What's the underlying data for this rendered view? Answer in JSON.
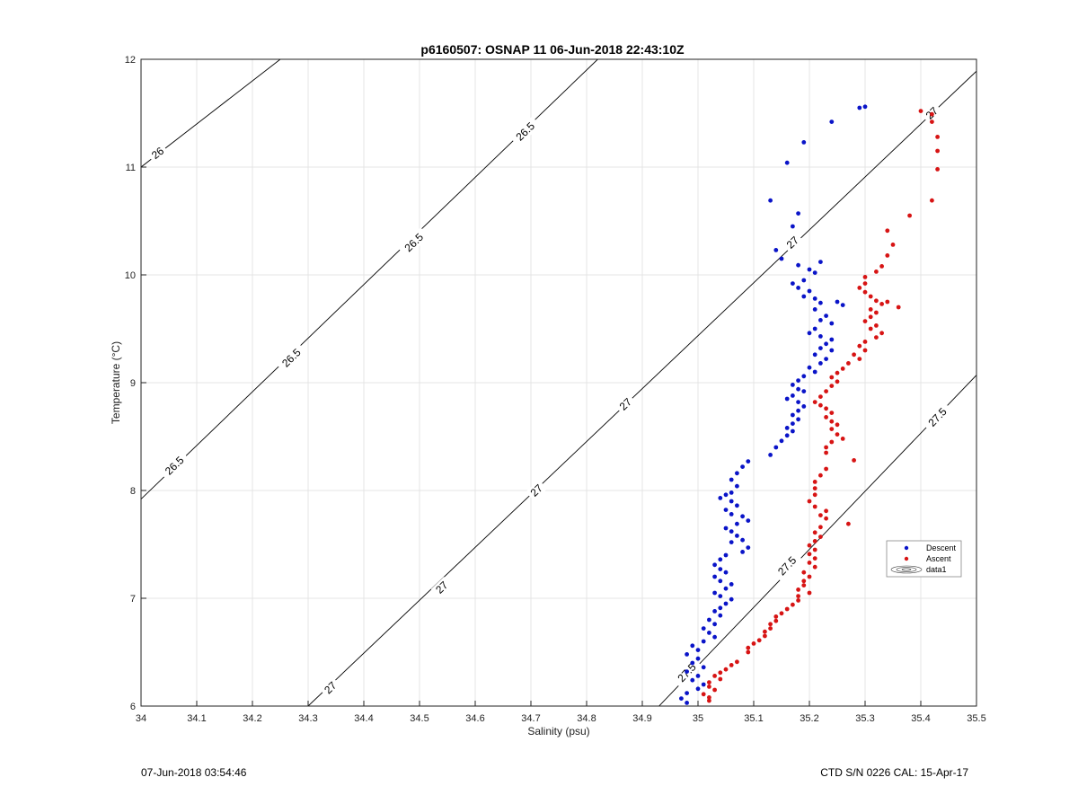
{
  "chart_data": {
    "type": "scatter",
    "title": "p6160507: OSNAP 11 06-Jun-2018 22:43:10Z",
    "xlabel": "Salinity (psu)",
    "ylabel": "Temperature (°C)",
    "xlim": [
      34,
      35.5
    ],
    "ylim": [
      6,
      12
    ],
    "xticks": [
      34,
      34.1,
      34.2,
      34.3,
      34.4,
      34.5,
      34.6,
      34.7,
      34.8,
      34.9,
      35,
      35.1,
      35.2,
      35.3,
      35.4,
      35.5
    ],
    "yticks": [
      6,
      7,
      8,
      9,
      10,
      11,
      12
    ],
    "xtick_labels": [
      "34",
      "34.1",
      "34.2",
      "34.3",
      "34.4",
      "34.5",
      "34.6",
      "34.7",
      "34.8",
      "34.9",
      "35",
      "35.1",
      "35.2",
      "35.3",
      "35.4",
      "35.5"
    ],
    "ytick_labels": [
      "6",
      "7",
      "8",
      "9",
      "10",
      "11",
      "12"
    ],
    "grid": true,
    "legend_position": "lower-right",
    "legend": [
      "Descent",
      "Ascent",
      "data1"
    ],
    "series": [
      {
        "name": "Descent",
        "color": "#0a14c8",
        "points": [
          [
            35.3,
            11.56
          ],
          [
            35.29,
            11.55
          ],
          [
            35.24,
            11.42
          ],
          [
            35.19,
            11.23
          ],
          [
            35.16,
            11.04
          ],
          [
            35.13,
            10.69
          ],
          [
            35.18,
            10.57
          ],
          [
            35.17,
            10.45
          ],
          [
            35.14,
            10.23
          ],
          [
            35.15,
            10.15
          ],
          [
            35.18,
            10.09
          ],
          [
            35.2,
            10.05
          ],
          [
            35.22,
            10.12
          ],
          [
            35.21,
            10.02
          ],
          [
            35.19,
            9.95
          ],
          [
            35.17,
            9.92
          ],
          [
            35.18,
            9.88
          ],
          [
            35.2,
            9.85
          ],
          [
            35.19,
            9.8
          ],
          [
            35.21,
            9.78
          ],
          [
            35.22,
            9.74
          ],
          [
            35.25,
            9.75
          ],
          [
            35.26,
            9.72
          ],
          [
            35.21,
            9.68
          ],
          [
            35.23,
            9.62
          ],
          [
            35.22,
            9.58
          ],
          [
            35.24,
            9.55
          ],
          [
            35.21,
            9.5
          ],
          [
            35.2,
            9.46
          ],
          [
            35.22,
            9.43
          ],
          [
            35.24,
            9.4
          ],
          [
            35.23,
            9.36
          ],
          [
            35.22,
            9.32
          ],
          [
            35.24,
            9.3
          ],
          [
            35.21,
            9.26
          ],
          [
            35.23,
            9.22
          ],
          [
            35.22,
            9.18
          ],
          [
            35.2,
            9.14
          ],
          [
            35.21,
            9.1
          ],
          [
            35.19,
            9.06
          ],
          [
            35.18,
            9.02
          ],
          [
            35.17,
            8.98
          ],
          [
            35.18,
            8.94
          ],
          [
            35.19,
            8.92
          ],
          [
            35.17,
            8.88
          ],
          [
            35.16,
            8.85
          ],
          [
            35.18,
            8.82
          ],
          [
            35.19,
            8.78
          ],
          [
            35.18,
            8.74
          ],
          [
            35.17,
            8.7
          ],
          [
            35.18,
            8.66
          ],
          [
            35.17,
            8.62
          ],
          [
            35.16,
            8.58
          ],
          [
            35.17,
            8.55
          ],
          [
            35.16,
            8.51
          ],
          [
            35.15,
            8.46
          ],
          [
            35.14,
            8.4
          ],
          [
            35.13,
            8.33
          ],
          [
            35.09,
            8.27
          ],
          [
            35.08,
            8.22
          ],
          [
            35.07,
            8.16
          ],
          [
            35.06,
            8.1
          ],
          [
            35.07,
            8.04
          ],
          [
            35.06,
            7.98
          ],
          [
            35.05,
            7.96
          ],
          [
            35.04,
            7.93
          ],
          [
            35.06,
            7.9
          ],
          [
            35.07,
            7.86
          ],
          [
            35.05,
            7.82
          ],
          [
            35.06,
            7.78
          ],
          [
            35.08,
            7.76
          ],
          [
            35.09,
            7.72
          ],
          [
            35.07,
            7.69
          ],
          [
            35.05,
            7.65
          ],
          [
            35.06,
            7.62
          ],
          [
            35.07,
            7.58
          ],
          [
            35.08,
            7.54
          ],
          [
            35.06,
            7.52
          ],
          [
            35.09,
            7.47
          ],
          [
            35.08,
            7.43
          ],
          [
            35.05,
            7.4
          ],
          [
            35.04,
            7.36
          ],
          [
            35.03,
            7.31
          ],
          [
            35.04,
            7.27
          ],
          [
            35.05,
            7.24
          ],
          [
            35.03,
            7.2
          ],
          [
            35.04,
            7.16
          ],
          [
            35.06,
            7.13
          ],
          [
            35.05,
            7.09
          ],
          [
            35.03,
            7.05
          ],
          [
            35.04,
            7.02
          ],
          [
            35.06,
            6.99
          ],
          [
            35.05,
            6.95
          ],
          [
            35.04,
            6.91
          ],
          [
            35.03,
            6.88
          ],
          [
            35.04,
            6.84
          ],
          [
            35.02,
            6.8
          ],
          [
            35.03,
            6.76
          ],
          [
            35.01,
            6.72
          ],
          [
            35.02,
            6.68
          ],
          [
            35.03,
            6.64
          ],
          [
            35.01,
            6.6
          ],
          [
            34.99,
            6.56
          ],
          [
            35.0,
            6.52
          ],
          [
            34.98,
            6.48
          ],
          [
            35.0,
            6.44
          ],
          [
            34.99,
            6.4
          ],
          [
            35.01,
            6.36
          ],
          [
            34.98,
            6.32
          ],
          [
            35.0,
            6.28
          ],
          [
            34.99,
            6.24
          ],
          [
            35.01,
            6.2
          ],
          [
            35.0,
            6.16
          ],
          [
            34.98,
            6.12
          ],
          [
            34.97,
            6.07
          ],
          [
            34.98,
            6.03
          ]
        ]
      },
      {
        "name": "Ascent",
        "color": "#d71414",
        "points": [
          [
            35.4,
            11.52
          ],
          [
            35.42,
            11.49
          ],
          [
            35.42,
            11.42
          ],
          [
            35.43,
            11.28
          ],
          [
            35.43,
            11.15
          ],
          [
            35.43,
            10.98
          ],
          [
            35.42,
            10.69
          ],
          [
            35.38,
            10.55
          ],
          [
            35.34,
            10.41
          ],
          [
            35.35,
            10.28
          ],
          [
            35.34,
            10.18
          ],
          [
            35.33,
            10.08
          ],
          [
            35.32,
            10.03
          ],
          [
            35.3,
            9.98
          ],
          [
            35.3,
            9.92
          ],
          [
            35.29,
            9.88
          ],
          [
            35.3,
            9.84
          ],
          [
            35.31,
            9.8
          ],
          [
            35.32,
            9.76
          ],
          [
            35.33,
            9.73
          ],
          [
            35.34,
            9.75
          ],
          [
            35.36,
            9.7
          ],
          [
            35.31,
            9.68
          ],
          [
            35.32,
            9.65
          ],
          [
            35.31,
            9.61
          ],
          [
            35.3,
            9.57
          ],
          [
            35.32,
            9.53
          ],
          [
            35.31,
            9.5
          ],
          [
            35.33,
            9.46
          ],
          [
            35.32,
            9.42
          ],
          [
            35.3,
            9.38
          ],
          [
            35.29,
            9.34
          ],
          [
            35.3,
            9.3
          ],
          [
            35.28,
            9.26
          ],
          [
            35.29,
            9.22
          ],
          [
            35.27,
            9.18
          ],
          [
            35.26,
            9.13
          ],
          [
            35.25,
            9.09
          ],
          [
            35.24,
            9.05
          ],
          [
            35.25,
            9.01
          ],
          [
            35.24,
            8.97
          ],
          [
            35.23,
            8.92
          ],
          [
            35.22,
            8.87
          ],
          [
            35.21,
            8.82
          ],
          [
            35.22,
            8.79
          ],
          [
            35.23,
            8.76
          ],
          [
            35.24,
            8.72
          ],
          [
            35.23,
            8.68
          ],
          [
            35.24,
            8.64
          ],
          [
            35.25,
            8.61
          ],
          [
            35.24,
            8.57
          ],
          [
            35.25,
            8.52
          ],
          [
            35.26,
            8.48
          ],
          [
            35.24,
            8.45
          ],
          [
            35.23,
            8.4
          ],
          [
            35.23,
            8.35
          ],
          [
            35.28,
            8.28
          ],
          [
            35.23,
            8.2
          ],
          [
            35.22,
            8.14
          ],
          [
            35.21,
            8.08
          ],
          [
            35.21,
            8.02
          ],
          [
            35.21,
            7.96
          ],
          [
            35.2,
            7.9
          ],
          [
            35.21,
            7.85
          ],
          [
            35.23,
            7.81
          ],
          [
            35.22,
            7.77
          ],
          [
            35.23,
            7.74
          ],
          [
            35.27,
            7.69
          ],
          [
            35.22,
            7.66
          ],
          [
            35.21,
            7.61
          ],
          [
            35.22,
            7.57
          ],
          [
            35.21,
            7.53
          ],
          [
            35.2,
            7.49
          ],
          [
            35.21,
            7.45
          ],
          [
            35.2,
            7.41
          ],
          [
            35.21,
            7.37
          ],
          [
            35.2,
            7.33
          ],
          [
            35.21,
            7.29
          ],
          [
            35.19,
            7.24
          ],
          [
            35.2,
            7.2
          ],
          [
            35.19,
            7.16
          ],
          [
            35.19,
            7.12
          ],
          [
            35.18,
            7.08
          ],
          [
            35.2,
            7.05
          ],
          [
            35.18,
            7.02
          ],
          [
            35.18,
            6.98
          ],
          [
            35.17,
            6.94
          ],
          [
            35.16,
            6.9
          ],
          [
            35.15,
            6.86
          ],
          [
            35.14,
            6.83
          ],
          [
            35.14,
            6.79
          ],
          [
            35.13,
            6.76
          ],
          [
            35.13,
            6.72
          ],
          [
            35.12,
            6.69
          ],
          [
            35.12,
            6.65
          ],
          [
            35.11,
            6.61
          ],
          [
            35.1,
            6.58
          ],
          [
            35.09,
            6.54
          ],
          [
            35.09,
            6.5
          ],
          [
            35.07,
            6.41
          ],
          [
            35.06,
            6.38
          ],
          [
            35.05,
            6.34
          ],
          [
            35.04,
            6.31
          ],
          [
            35.03,
            6.28
          ],
          [
            35.04,
            6.25
          ],
          [
            35.02,
            6.22
          ],
          [
            35.02,
            6.18
          ],
          [
            35.03,
            6.15
          ],
          [
            35.01,
            6.11
          ],
          [
            35.02,
            6.08
          ],
          [
            35.02,
            6.05
          ]
        ]
      }
    ],
    "contour_lines": [
      {
        "label": "26",
        "points": [
          [
            34.0,
            11.0
          ],
          [
            34.25,
            12.0
          ]
        ],
        "label_at": [
          34.03,
          11.13
        ]
      },
      {
        "label": "26.5",
        "points": [
          [
            34.0,
            7.92
          ],
          [
            34.82,
            12.0
          ]
        ],
        "label_at": [
          34.69,
          11.33
        ]
      },
      {
        "label": "26.5",
        "label_at": [
          34.49,
          10.3
        ]
      },
      {
        "label": "26.5",
        "label_at": [
          34.27,
          9.23
        ]
      },
      {
        "label": "26.5",
        "label_at": [
          34.06,
          8.23
        ]
      },
      {
        "label": "27",
        "points": [
          [
            34.3,
            6.0
          ],
          [
            35.5,
            11.89
          ]
        ],
        "label_at": [
          35.42,
          11.5
        ]
      },
      {
        "label": "27",
        "label_at": [
          35.17,
          10.3
        ]
      },
      {
        "label": "27",
        "label_at": [
          34.87,
          8.8
        ]
      },
      {
        "label": "27",
        "label_at": [
          34.71,
          8.0
        ]
      },
      {
        "label": "27",
        "label_at": [
          34.54,
          7.1
        ]
      },
      {
        "label": "27",
        "label_at": [
          34.34,
          6.17
        ]
      },
      {
        "label": "27.5",
        "points": [
          [
            34.93,
            6.0
          ],
          [
            35.5,
            9.07
          ]
        ],
        "label_at": [
          35.43,
          8.68
        ]
      },
      {
        "label": "27.5",
        "label_at": [
          35.16,
          7.3
        ]
      },
      {
        "label": "27.5",
        "label_at": [
          34.98,
          6.31
        ]
      }
    ]
  },
  "footer": {
    "left": "07-Jun-2018 03:54:46",
    "right": "CTD S/N 0226  CAL: 15-Apr-17"
  }
}
